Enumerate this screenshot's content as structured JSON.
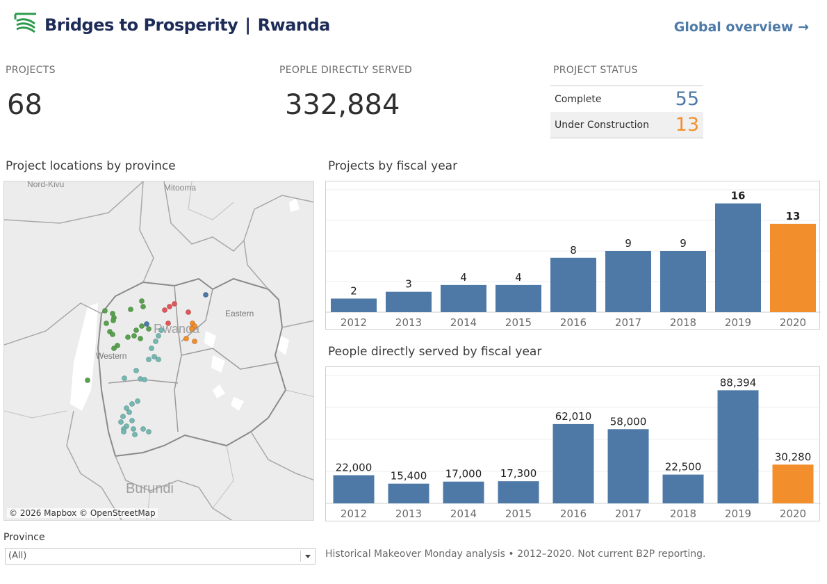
{
  "header": {
    "brand": "Bridges to Prosperity",
    "separator": "|",
    "country": "Rwanda",
    "global_link": "Global overview →"
  },
  "kpis": {
    "projects_label": "PROJECTS",
    "projects_value": "68",
    "people_label": "PEOPLE DIRECTLY SERVED",
    "people_value": "332,884",
    "status_label": "PROJECT STATUS",
    "status": [
      {
        "name": "Complete",
        "value": "55",
        "color": "#4e79a7"
      },
      {
        "name": "Under Construction",
        "value": "13",
        "color": "#f28e2b"
      }
    ]
  },
  "map": {
    "title": "Project locations by province",
    "labels": [
      "Nord-Kivu",
      "Mitooma",
      "Rwanda",
      "Eastern",
      "Western",
      "Burundi"
    ],
    "attribution": "© 2026 Mapbox © OpenStreetMap"
  },
  "charts": {
    "projects_title": "Projects by fiscal year",
    "people_title": "People directly served by fiscal year"
  },
  "chart_data": [
    {
      "type": "bar",
      "title": "Projects by fiscal year",
      "categories": [
        "2012",
        "2013",
        "2014",
        "2015",
        "2016",
        "2017",
        "2018",
        "2019",
        "2020"
      ],
      "values": [
        2,
        3,
        4,
        4,
        8,
        9,
        9,
        16,
        13
      ],
      "labels": [
        "2",
        "3",
        "4",
        "4",
        "8",
        "9",
        "9",
        "16",
        "13"
      ],
      "colors": [
        "#4e79a7",
        "#4e79a7",
        "#4e79a7",
        "#4e79a7",
        "#4e79a7",
        "#4e79a7",
        "#4e79a7",
        "#4e79a7",
        "#f28e2b"
      ],
      "ylim": [
        0,
        18
      ],
      "grid": true
    },
    {
      "type": "bar",
      "title": "People directly served by fiscal year",
      "categories": [
        "2012",
        "2013",
        "2014",
        "2015",
        "2016",
        "2017",
        "2018",
        "2019",
        "2020"
      ],
      "values": [
        22000,
        15400,
        17000,
        17300,
        62010,
        58000,
        22500,
        88394,
        30280
      ],
      "labels": [
        "22,000",
        "15,400",
        "17,000",
        "17,300",
        "62,010",
        "58,000",
        "22,500",
        "88,394",
        "30,280"
      ],
      "colors": [
        "#4e79a7",
        "#4e79a7",
        "#4e79a7",
        "#4e79a7",
        "#4e79a7",
        "#4e79a7",
        "#4e79a7",
        "#4e79a7",
        "#f28e2b"
      ],
      "ylim": [
        0,
        100000
      ],
      "grid": true
    }
  ],
  "filter": {
    "label": "Province",
    "selected": "(All)"
  },
  "footnote": "Historical Makeover Monday analysis • 2012–2020. Not current B2P reporting."
}
